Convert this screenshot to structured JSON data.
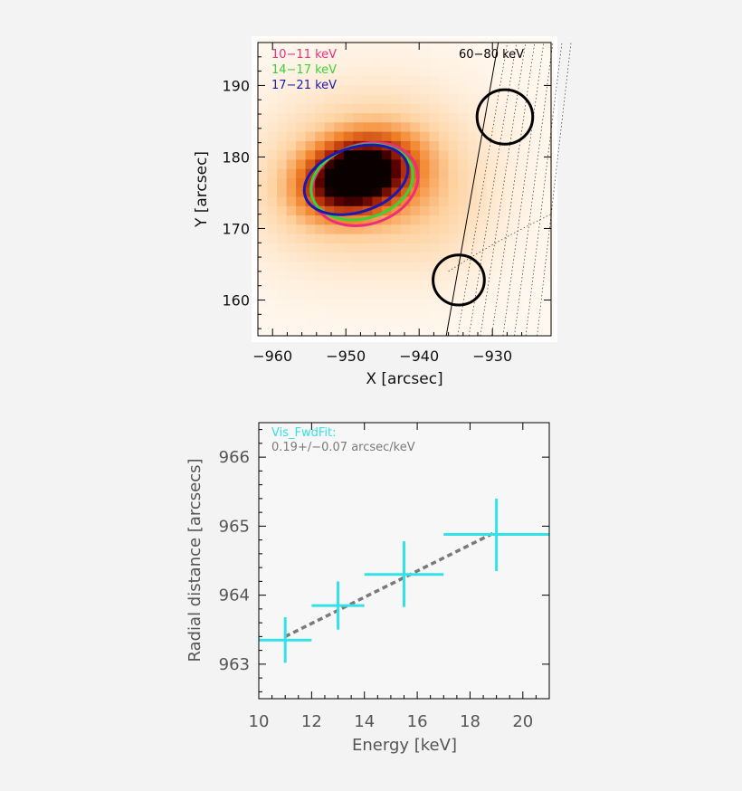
{
  "chart_data": [
    {
      "type": "heatmap",
      "xlabel": "X [arcsec]",
      "ylabel": "Y [arcsec]",
      "xlim": [
        -962,
        -922
      ],
      "ylim": [
        155,
        196
      ],
      "xticks": [
        -960,
        -950,
        -940,
        -930
      ],
      "yticks": [
        160,
        170,
        180,
        190
      ],
      "x_tick_labels": [
        "−960",
        "−950",
        "−940",
        "−930"
      ],
      "y_tick_labels": [
        "160",
        "170",
        "180",
        "190"
      ],
      "colormap": "white-orange-red-black",
      "peak": {
        "x": -948.5,
        "y": 177.5
      },
      "contours": [
        {
          "name": "10−11 keV",
          "color": "#e8307c",
          "cx": -947.4,
          "cy": 176.2,
          "rx": 7.4,
          "ry": 5.6,
          "angle_deg": 18
        },
        {
          "name": "14−17 keV",
          "color": "#3ad23a",
          "cx": -947.8,
          "cy": 176.5,
          "rx": 7.1,
          "ry": 5.1,
          "angle_deg": 16
        },
        {
          "name": "17−21 keV",
          "color": "#1a1ab0",
          "cx": -948.6,
          "cy": 176.8,
          "rx": 7.3,
          "ry": 4.5,
          "angle_deg": 18
        }
      ],
      "annotation": "60−80 keV",
      "circles": [
        {
          "cx": -928.3,
          "cy": 185.6,
          "r": 3.8
        },
        {
          "cx": -934.6,
          "cy": 162.8,
          "r": 3.5
        }
      ],
      "legend_position": "top-left",
      "colors": {
        "limb_line": "#000000",
        "circle": "#000000"
      }
    },
    {
      "type": "scatter",
      "xlabel": "Energy [keV]",
      "ylabel": "Radial distance [arcsecs]",
      "xlim": [
        10,
        21
      ],
      "ylim": [
        962.5,
        966.5
      ],
      "xticks": [
        10,
        12,
        14,
        16,
        18,
        20
      ],
      "yticks": [
        963,
        964,
        965,
        966
      ],
      "x_tick_labels": [
        "10",
        "12",
        "14",
        "16",
        "18",
        "20"
      ],
      "y_tick_labels": [
        "963",
        "964",
        "965",
        "966"
      ],
      "series": [
        {
          "name": "Vis_FwdFit:",
          "color": "#33e2e6",
          "points": [
            {
              "x": 11.0,
              "y": 963.35,
              "xerr": [
                10.0,
                12.0
              ],
              "yerr": [
                963.02,
                963.68
              ]
            },
            {
              "x": 13.0,
              "y": 963.85,
              "xerr": [
                12.0,
                14.0
              ],
              "yerr": [
                963.5,
                964.2
              ]
            },
            {
              "x": 15.5,
              "y": 964.3,
              "xerr": [
                14.0,
                17.0
              ],
              "yerr": [
                963.83,
                964.78
              ]
            },
            {
              "x": 19.0,
              "y": 964.88,
              "xerr": [
                17.0,
                21.0
              ],
              "yerr": [
                964.35,
                965.4
              ]
            }
          ]
        }
      ],
      "fit": {
        "label": "0.19+/−0.07 arcsec/keV",
        "color": "#7a7a7a",
        "x": [
          11,
          19
        ],
        "y": [
          963.4,
          964.92
        ]
      },
      "legend_position": "top-left"
    }
  ]
}
